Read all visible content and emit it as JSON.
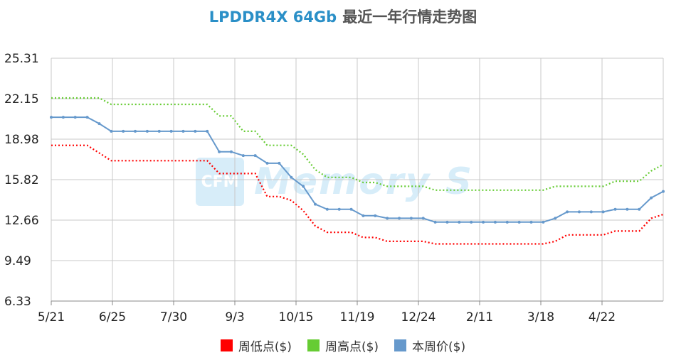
{
  "title": {
    "primary": "LPDDR4X 64Gb",
    "secondary": "最近一年行情走势图"
  },
  "watermark": {
    "logo": "CFM",
    "text": "Memory S"
  },
  "chart_data": {
    "type": "line",
    "ylim": [
      6.33,
      25.31
    ],
    "yticks": [
      "25.31",
      "22.15",
      "18.98",
      "15.82",
      "12.66",
      "9.49",
      "6.33"
    ],
    "xtick_labels": [
      "5/21",
      "6/25",
      "7/30",
      "9/3",
      "10/15",
      "11/19",
      "12/24",
      "2/11",
      "3/18",
      "4/22"
    ],
    "grid": true,
    "legend_position": "bottom",
    "series": [
      {
        "name": "周低点($)",
        "color": "#ff0000",
        "style": "dotted",
        "values": [
          18.5,
          18.5,
          18.5,
          18.5,
          17.9,
          17.3,
          17.3,
          17.3,
          17.3,
          17.3,
          17.3,
          17.3,
          17.3,
          17.3,
          16.3,
          16.3,
          16.3,
          16.3,
          14.5,
          14.5,
          14.2,
          13.4,
          12.2,
          11.7,
          11.7,
          11.7,
          11.3,
          11.3,
          11.0,
          11.0,
          11.0,
          11.0,
          10.8,
          10.8,
          10.8,
          10.8,
          10.8,
          10.8,
          10.8,
          10.8,
          10.8,
          10.8,
          11.0,
          11.5,
          11.5,
          11.5,
          11.5,
          11.8,
          11.8,
          11.8,
          12.8,
          13.1
        ]
      },
      {
        "name": "周高点($)",
        "color": "#66cc33",
        "style": "dotted",
        "values": [
          22.2,
          22.2,
          22.2,
          22.2,
          22.2,
          21.7,
          21.7,
          21.7,
          21.7,
          21.7,
          21.7,
          21.7,
          21.7,
          21.7,
          20.8,
          20.8,
          19.6,
          19.6,
          18.5,
          18.5,
          18.5,
          17.8,
          16.6,
          16.0,
          16.0,
          16.0,
          15.6,
          15.6,
          15.3,
          15.3,
          15.3,
          15.3,
          15.0,
          15.0,
          15.0,
          15.0,
          15.0,
          15.0,
          15.0,
          15.0,
          15.0,
          15.0,
          15.3,
          15.3,
          15.3,
          15.3,
          15.3,
          15.7,
          15.7,
          15.7,
          16.5,
          17.0
        ]
      },
      {
        "name": "本周价($)",
        "color": "#6699cc",
        "style": "solid",
        "values": [
          20.7,
          20.7,
          20.7,
          20.7,
          20.2,
          19.6,
          19.6,
          19.6,
          19.6,
          19.6,
          19.6,
          19.6,
          19.6,
          19.6,
          18.0,
          18.0,
          17.7,
          17.7,
          17.1,
          17.1,
          16.0,
          15.3,
          13.9,
          13.5,
          13.5,
          13.5,
          13.0,
          13.0,
          12.8,
          12.8,
          12.8,
          12.8,
          12.5,
          12.5,
          12.5,
          12.5,
          12.5,
          12.5,
          12.5,
          12.5,
          12.5,
          12.5,
          12.8,
          13.3,
          13.3,
          13.3,
          13.3,
          13.5,
          13.5,
          13.5,
          14.4,
          14.9
        ]
      }
    ]
  }
}
